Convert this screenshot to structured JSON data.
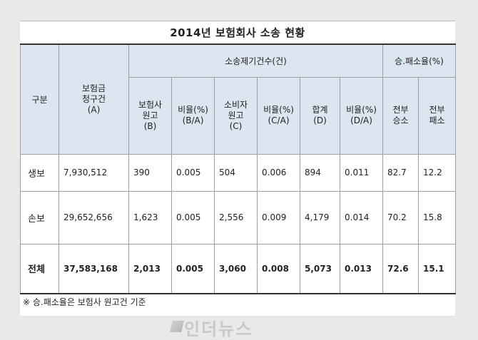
{
  "title": "2014년 보험회사 소송 현황",
  "headers": {
    "category": "구분",
    "claims": [
      "보험금",
      "청구건",
      "(A)"
    ],
    "lawsuits_group": "소송제기건수(건)",
    "win_loss_group": "승.패소율(%)",
    "insurer": [
      "보험사",
      "원고",
      "(B)"
    ],
    "ratio_b": [
      "비율(%)",
      "(B/A)"
    ],
    "consumer": [
      "소비자",
      "원고",
      "(C)"
    ],
    "ratio_c": [
      "비율(%)",
      "(C/A)"
    ],
    "total": [
      "합계",
      "(D)"
    ],
    "ratio_d": [
      "비율(%)",
      "(D/A)"
    ],
    "full_win": [
      "전부",
      "승소"
    ],
    "full_loss": [
      "전부",
      "패소"
    ]
  },
  "rows": [
    {
      "label": "생보",
      "claims": "7,930,512",
      "b": "390",
      "rb": "0.005",
      "c": "504",
      "rc": "0.006",
      "d": "894",
      "rd": "0.011",
      "win": "82.7",
      "loss": "12.2"
    },
    {
      "label": "손보",
      "claims": "29,652,656",
      "b": "1,623",
      "rb": "0.005",
      "c": "2,556",
      "rc": "0.009",
      "d": "4,179",
      "rd": "0.014",
      "win": "70.2",
      "loss": "15.8"
    },
    {
      "label": "전체",
      "claims": "37,583,168",
      "b": "2,013",
      "rb": "0.005",
      "c": "3,060",
      "rc": "0.008",
      "d": "5,073",
      "rd": "0.013",
      "win": "72.6",
      "loss": "15.1"
    }
  ],
  "note": "※ 승.패소율은 보험사 원고건 기준",
  "watermark": "인더뉴스"
}
